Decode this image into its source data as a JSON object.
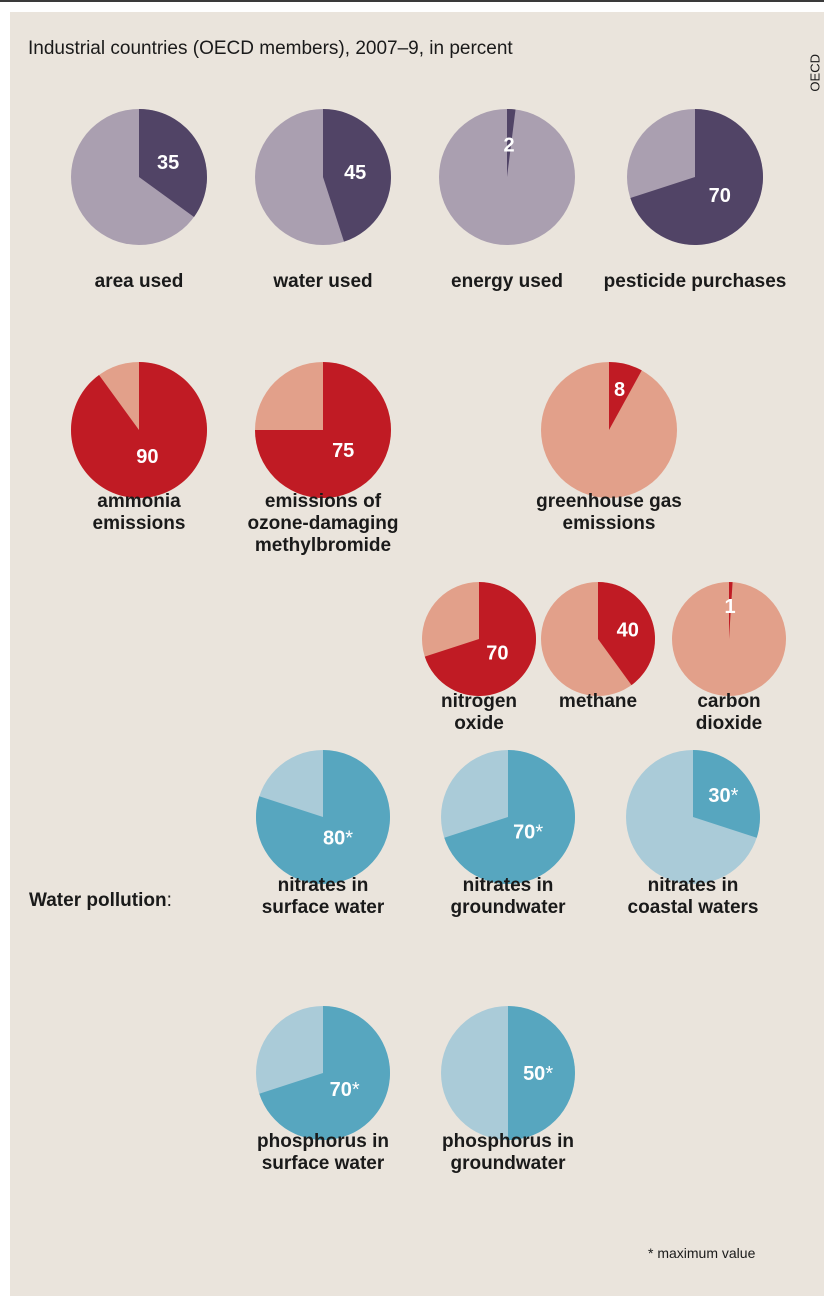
{
  "header": {
    "subtitle": "Industrial countries (OECD members), 2007–9, in percent",
    "source": "OECD"
  },
  "section_label": "Water pollution",
  "footnote": "* maximum value",
  "colors": {
    "background": "#eae4dc",
    "purple_dark": "#514466",
    "purple_light": "#aa9fb0",
    "red_dark": "#c01b24",
    "red_light": "#e2a08a",
    "blue_dark": "#57a6bf",
    "blue_light": "#aacbd8"
  },
  "chart_data": {
    "type": "pie",
    "charts": [
      {
        "id": "area",
        "value": 35,
        "label_text": "35",
        "caption": [
          "area used"
        ],
        "palette": "purple"
      },
      {
        "id": "water",
        "value": 45,
        "label_text": "45",
        "caption": [
          "water used"
        ],
        "palette": "purple"
      },
      {
        "id": "energy",
        "value": 2,
        "label_text": "2",
        "caption": [
          "energy used"
        ],
        "palette": "purple"
      },
      {
        "id": "pesticide",
        "value": 70,
        "label_text": "70",
        "caption": [
          "pesticide purchases"
        ],
        "palette": "purple"
      },
      {
        "id": "ammonia",
        "value": 90,
        "label_text": "90",
        "caption": [
          "ammonia",
          "emissions"
        ],
        "palette": "red"
      },
      {
        "id": "methylbromide",
        "value": 75,
        "label_text": "75",
        "caption": [
          "emissions of",
          "ozone-damaging",
          "methylbromide"
        ],
        "palette": "red"
      },
      {
        "id": "greenhouse",
        "value": 8,
        "label_text": "8",
        "caption": [
          "greenhouse gas",
          "emissions"
        ],
        "palette": "red"
      },
      {
        "id": "nitrogen",
        "value": 70,
        "label_text": "70",
        "caption": [
          "nitrogen",
          "oxide"
        ],
        "palette": "red"
      },
      {
        "id": "methane",
        "value": 40,
        "label_text": "40",
        "caption": [
          "methane"
        ],
        "palette": "red"
      },
      {
        "id": "co2",
        "value": 1,
        "label_text": "1",
        "caption": [
          "carbon",
          "dioxide"
        ],
        "palette": "red"
      },
      {
        "id": "nitr_surface",
        "value": 80,
        "label_text": "80",
        "asterisk": true,
        "caption": [
          "nitrates in",
          "surface water"
        ],
        "palette": "blue"
      },
      {
        "id": "nitr_ground",
        "value": 70,
        "label_text": "70",
        "asterisk": true,
        "caption": [
          "nitrates in",
          "groundwater"
        ],
        "palette": "blue"
      },
      {
        "id": "nitr_coastal",
        "value": 30,
        "label_text": "30",
        "asterisk": true,
        "caption": [
          "nitrates in",
          "coastal waters"
        ],
        "palette": "blue"
      },
      {
        "id": "phos_surface",
        "value": 70,
        "label_text": "70",
        "asterisk": true,
        "caption": [
          "phosphorus in",
          "surface water"
        ],
        "palette": "blue"
      },
      {
        "id": "phos_ground",
        "value": 50,
        "label_text": "50",
        "asterisk": true,
        "caption": [
          "phosphorus in",
          "groundwater"
        ],
        "palette": "blue"
      }
    ]
  }
}
